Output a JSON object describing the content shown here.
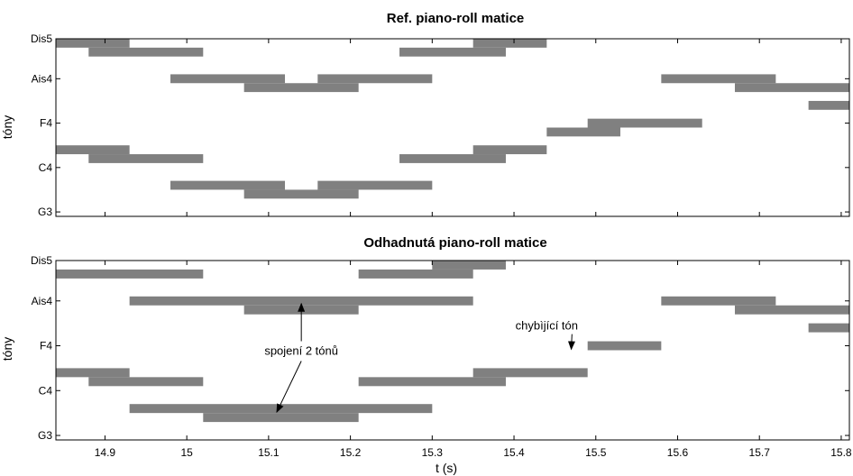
{
  "chart_data": [
    {
      "type": "piano-roll",
      "title": "Ref. piano-roll matice",
      "ylabel": "tóny",
      "xlabel": "",
      "xlim": [
        14.84,
        15.81
      ],
      "ylim": [
        -0.5,
        19.5
      ],
      "yticks": [
        {
          "value": 0,
          "label": "G3"
        },
        {
          "value": 5,
          "label": "C4"
        },
        {
          "value": 10,
          "label": "F4"
        },
        {
          "value": 15,
          "label": "Ais4"
        },
        {
          "value": 20,
          "label": "Dis5"
        }
      ],
      "xticks": [],
      "color": "#808080",
      "notes": [
        {
          "start": 14.84,
          "end": 14.93,
          "pitch": 19
        },
        {
          "start": 14.88,
          "end": 15.02,
          "pitch": 18
        },
        {
          "start": 14.84,
          "end": 14.93,
          "pitch": 7
        },
        {
          "start": 14.88,
          "end": 15.02,
          "pitch": 6
        },
        {
          "start": 14.98,
          "end": 15.12,
          "pitch": 15
        },
        {
          "start": 15.07,
          "end": 15.21,
          "pitch": 14
        },
        {
          "start": 15.16,
          "end": 15.3,
          "pitch": 15
        },
        {
          "start": 14.98,
          "end": 15.12,
          "pitch": 3
        },
        {
          "start": 15.07,
          "end": 15.21,
          "pitch": 2
        },
        {
          "start": 15.16,
          "end": 15.3,
          "pitch": 3
        },
        {
          "start": 15.26,
          "end": 15.39,
          "pitch": 18
        },
        {
          "start": 15.35,
          "end": 15.44,
          "pitch": 19
        },
        {
          "start": 15.26,
          "end": 15.39,
          "pitch": 6
        },
        {
          "start": 15.35,
          "end": 15.44,
          "pitch": 7
        },
        {
          "start": 15.44,
          "end": 15.53,
          "pitch": 9
        },
        {
          "start": 15.49,
          "end": 15.63,
          "pitch": 10
        },
        {
          "start": 15.58,
          "end": 15.72,
          "pitch": 15
        },
        {
          "start": 15.67,
          "end": 15.81,
          "pitch": 14
        },
        {
          "start": 15.76,
          "end": 15.81,
          "pitch": 12
        }
      ],
      "annotations": []
    },
    {
      "type": "piano-roll",
      "title": "Odhadnutá piano-roll matice",
      "ylabel": "tóny",
      "xlabel": "t (s)",
      "xlim": [
        14.84,
        15.81
      ],
      "ylim": [
        -0.5,
        19.5
      ],
      "yticks": [
        {
          "value": 0,
          "label": "G3"
        },
        {
          "value": 5,
          "label": "C4"
        },
        {
          "value": 10,
          "label": "F4"
        },
        {
          "value": 15,
          "label": "Ais4"
        },
        {
          "value": 20,
          "label": "Dis5"
        }
      ],
      "xticks": [
        {
          "value": 14.9,
          "label": "14.9"
        },
        {
          "value": 15.0,
          "label": "15"
        },
        {
          "value": 15.1,
          "label": "15.1"
        },
        {
          "value": 15.2,
          "label": "15.2"
        },
        {
          "value": 15.3,
          "label": "15.3"
        },
        {
          "value": 15.4,
          "label": "15.4"
        },
        {
          "value": 15.5,
          "label": "15.5"
        },
        {
          "value": 15.6,
          "label": "15.6"
        },
        {
          "value": 15.7,
          "label": "15.7"
        },
        {
          "value": 15.8,
          "label": "15.8"
        }
      ],
      "color": "#808080",
      "notes": [
        {
          "start": 14.84,
          "end": 15.02,
          "pitch": 18
        },
        {
          "start": 14.93,
          "end": 15.35,
          "pitch": 15
        },
        {
          "start": 15.07,
          "end": 15.21,
          "pitch": 14
        },
        {
          "start": 15.21,
          "end": 15.35,
          "pitch": 18
        },
        {
          "start": 15.3,
          "end": 15.39,
          "pitch": 19
        },
        {
          "start": 14.84,
          "end": 14.93,
          "pitch": 7
        },
        {
          "start": 14.88,
          "end": 15.02,
          "pitch": 6
        },
        {
          "start": 14.93,
          "end": 15.3,
          "pitch": 3
        },
        {
          "start": 15.02,
          "end": 15.21,
          "pitch": 2
        },
        {
          "start": 15.21,
          "end": 15.39,
          "pitch": 6
        },
        {
          "start": 15.35,
          "end": 15.49,
          "pitch": 7
        },
        {
          "start": 15.49,
          "end": 15.58,
          "pitch": 10
        },
        {
          "start": 15.58,
          "end": 15.72,
          "pitch": 15
        },
        {
          "start": 15.67,
          "end": 15.81,
          "pitch": 14
        },
        {
          "start": 15.76,
          "end": 15.81,
          "pitch": 12
        }
      ],
      "annotations": [
        {
          "text": "spojení 2 tónů",
          "x": 15.14,
          "y": 9.5,
          "arrows": [
            {
              "x": 15.14,
              "y": 14.7
            },
            {
              "x": 15.11,
              "y": 2.6
            }
          ]
        },
        {
          "text": "chybìjící tón",
          "x": 15.44,
          "y": 12.3,
          "arrows": [
            {
              "x": 15.47,
              "y": 9.6
            }
          ]
        }
      ]
    }
  ]
}
